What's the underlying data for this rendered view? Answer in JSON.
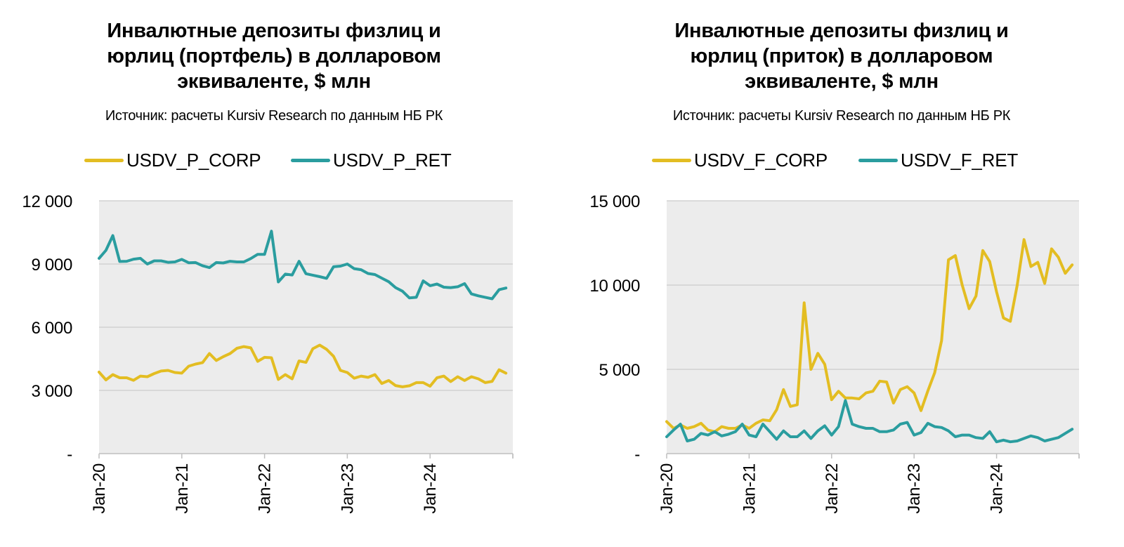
{
  "charts": [
    {
      "title": [
        "Инвалютные депозиты физлиц и",
        "юрлиц (портфель) в долларовом",
        "эквиваленте, $ млн"
      ],
      "source": "Источник: расчеты Kursiv Research по данным НБ РК"
    },
    {
      "title": [
        "Инвалютные депозиты физлиц и",
        "юрлиц (приток) в долларовом",
        "эквиваленте, $ млн"
      ],
      "source": "Источник: расчеты Kursiv Research по данным НБ РК"
    }
  ],
  "chart_data": [
    {
      "type": "line",
      "title": "Инвалютные депозиты физлиц и юрлиц (портфель) в долларовом эквиваленте, $ млн",
      "subtitle": "Источник: расчеты Kursiv Research по данным НБ РК",
      "x_start": "Jan-20",
      "x_frequency": "monthly",
      "x_tick_labels": [
        "Jan-20",
        "Jan-21",
        "Jan-22",
        "Jan-23",
        "Jan-24"
      ],
      "y_tick_labels": [
        "-",
        "3 000",
        "6 000",
        "9 000",
        "12 000"
      ],
      "y_ticks": [
        0,
        3000,
        6000,
        9000,
        12000
      ],
      "ylim": [
        0,
        12000
      ],
      "grid": true,
      "legend_position": "top",
      "series": [
        {
          "name": "USDV_P_CORP",
          "color": "#e3bd22",
          "values": [
            3870,
            3500,
            3750,
            3600,
            3600,
            3480,
            3680,
            3650,
            3800,
            3920,
            3950,
            3850,
            3820,
            4150,
            4250,
            4320,
            4750,
            4420,
            4600,
            4750,
            5000,
            5080,
            5020,
            4380,
            4570,
            4550,
            3520,
            3750,
            3550,
            4400,
            4330,
            4980,
            5150,
            4950,
            4620,
            3950,
            3850,
            3580,
            3680,
            3620,
            3750,
            3330,
            3470,
            3230,
            3170,
            3220,
            3370,
            3370,
            3200,
            3600,
            3680,
            3420,
            3650,
            3470,
            3650,
            3550,
            3370,
            3430,
            3980,
            3820
          ]
        },
        {
          "name": "USDV_P_RET",
          "color": "#2a9d9f",
          "values": [
            9270,
            9650,
            10350,
            9120,
            9130,
            9230,
            9270,
            9000,
            9150,
            9150,
            9080,
            9100,
            9220,
            9060,
            9070,
            8920,
            8830,
            9070,
            9050,
            9130,
            9100,
            9100,
            9260,
            9460,
            9460,
            10560,
            8150,
            8520,
            8480,
            9130,
            8540,
            8470,
            8400,
            8320,
            8870,
            8900,
            9000,
            8780,
            8730,
            8550,
            8500,
            8330,
            8160,
            7880,
            7710,
            7390,
            7420,
            8200,
            7970,
            8050,
            7900,
            7880,
            7920,
            8070,
            7580,
            7490,
            7420,
            7350,
            7780,
            7860
          ]
        }
      ]
    },
    {
      "type": "line",
      "title": "Инвалютные депозиты физлиц и юрлиц (приток) в долларовом эквиваленте, $ млн",
      "subtitle": "Источник: расчеты Kursiv Research по данным НБ РК",
      "x_start": "Jan-20",
      "x_frequency": "monthly",
      "x_tick_labels": [
        "Jan-20",
        "Jan-21",
        "Jan-22",
        "Jan-23",
        "Jan-24"
      ],
      "y_tick_labels": [
        "-",
        "5 000",
        "10 000",
        "15 000"
      ],
      "y_ticks": [
        0,
        5000,
        10000,
        15000
      ],
      "ylim": [
        0,
        15000
      ],
      "grid": true,
      "legend_position": "top",
      "series": [
        {
          "name": "USDV_F_CORP",
          "color": "#e3bd22",
          "values": [
            1900,
            1500,
            1700,
            1500,
            1600,
            1800,
            1400,
            1300,
            1600,
            1500,
            1500,
            1700,
            1500,
            1800,
            2000,
            1950,
            2600,
            3800,
            2800,
            2900,
            8950,
            5000,
            5950,
            5300,
            3200,
            3700,
            3300,
            3300,
            3250,
            3600,
            3700,
            4300,
            4250,
            3000,
            3800,
            3970,
            3600,
            2550,
            3720,
            4800,
            6700,
            11500,
            11750,
            10000,
            8600,
            9350,
            12050,
            11400,
            9600,
            8050,
            7850,
            10000,
            12700,
            11100,
            11350,
            10100,
            12150,
            11650,
            10700,
            11200
          ]
        },
        {
          "name": "USDV_F_RET",
          "color": "#2a9d9f",
          "values": [
            1000,
            1400,
            1750,
            750,
            850,
            1200,
            1100,
            1300,
            1050,
            1150,
            1300,
            1750,
            1100,
            1000,
            1750,
            1300,
            850,
            1350,
            1000,
            1000,
            1350,
            900,
            1350,
            1650,
            1100,
            1600,
            3150,
            1750,
            1600,
            1500,
            1500,
            1300,
            1300,
            1400,
            1750,
            1850,
            1100,
            1250,
            1800,
            1600,
            1550,
            1350,
            1000,
            1100,
            1100,
            950,
            900,
            1300,
            700,
            800,
            700,
            750,
            900,
            1050,
            950,
            750,
            850,
            950,
            1200,
            1450
          ]
        }
      ]
    }
  ]
}
